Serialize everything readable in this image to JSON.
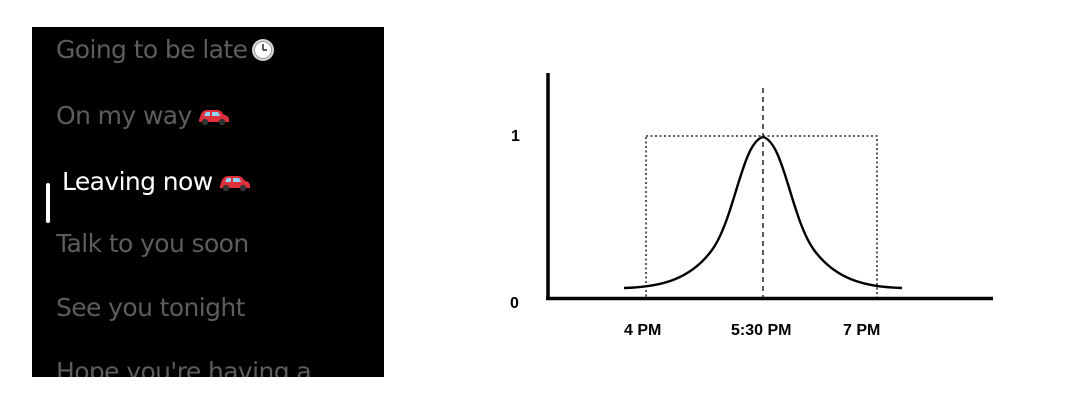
{
  "replies": {
    "items": [
      {
        "label": "Going to be late",
        "icon": "clock-emoji-icon"
      },
      {
        "label": "On my way",
        "icon": "red-car-emoji-icon"
      },
      {
        "label": "Leaving now",
        "icon": "red-car-emoji-icon",
        "selected": true
      },
      {
        "label": "Talk to you soon"
      },
      {
        "label": "See you tonight"
      },
      {
        "label": "Hope you're having a"
      }
    ]
  },
  "diagram": {
    "y_labels": [
      "1",
      "0"
    ],
    "x_labels": [
      "4 PM",
      "5:30 PM",
      "7 PM"
    ]
  },
  "colors": {
    "panel_bg": "#000000",
    "item_dim": "#5d5d5d",
    "item_selected": "#ffffff",
    "car": "#e0303a"
  }
}
